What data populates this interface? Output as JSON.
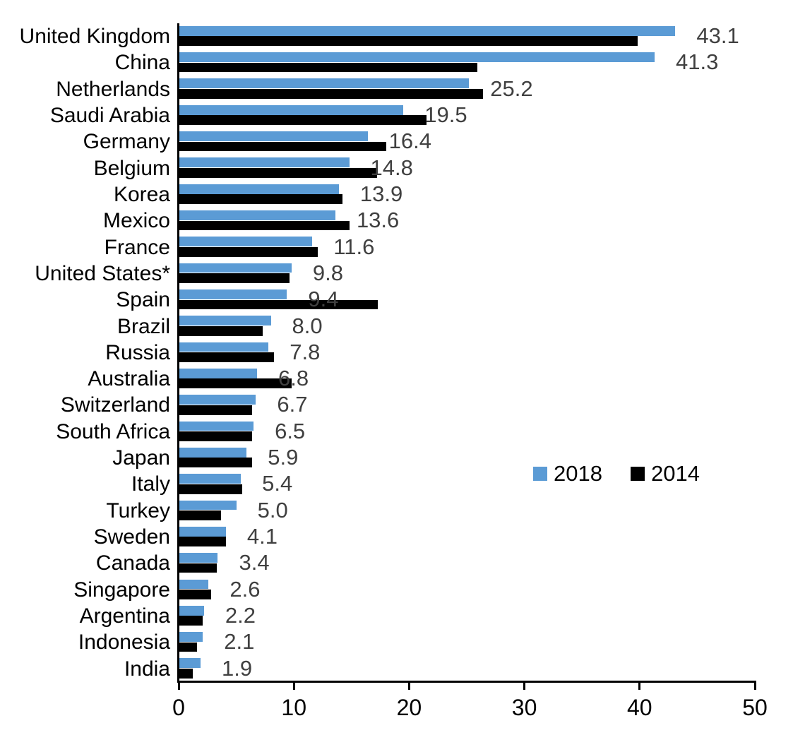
{
  "chart_data": {
    "type": "bar",
    "orientation": "horizontal",
    "title": "",
    "xlabel": "",
    "ylabel": "",
    "xlim": [
      0,
      50
    ],
    "x_ticks": [
      "0",
      "10",
      "20",
      "30",
      "40",
      "50"
    ],
    "grid": false,
    "legend_position": "middle-right",
    "value_label_color": "#404040",
    "categories": [
      "United Kingdom",
      "China",
      "Netherlands",
      "Saudi Arabia",
      "Germany",
      "Belgium",
      "Korea",
      "Mexico",
      "France",
      "United States*",
      "Spain",
      "Brazil",
      "Russia",
      "Australia",
      "Switzerland",
      "South Africa",
      "Japan",
      "Italy",
      "Turkey",
      "Sweden",
      "Canada",
      "Singapore",
      "Argentina",
      "Indonesia",
      "India"
    ],
    "series": [
      {
        "name": "2018",
        "color": "#5B9BD5",
        "values": [
          43.1,
          41.3,
          25.2,
          19.5,
          16.4,
          14.8,
          13.9,
          13.6,
          11.6,
          9.8,
          9.4,
          8.0,
          7.8,
          6.8,
          6.7,
          6.5,
          5.9,
          5.4,
          5.0,
          4.1,
          3.4,
          2.6,
          2.2,
          2.1,
          1.9
        ],
        "labels": [
          "43.1",
          "41.3",
          "25.2",
          "19.5",
          "16.4",
          "14.8",
          "13.9",
          "13.6",
          "11.6",
          "9.8",
          "9.4",
          "8.0",
          "7.8",
          "6.8",
          "6.7",
          "6.5",
          "5.9",
          "5.4",
          "5.0",
          "4.1",
          "3.4",
          "2.6",
          "2.2",
          "2.1",
          "1.9"
        ],
        "labels_shown": true
      },
      {
        "name": "2014",
        "color": "#000000",
        "values": [
          39.8,
          25.9,
          26.4,
          21.5,
          18.0,
          17.2,
          14.2,
          14.8,
          12.1,
          9.6,
          17.3,
          7.3,
          8.3,
          9.8,
          6.4,
          6.4,
          6.4,
          5.5,
          3.7,
          4.1,
          3.3,
          2.8,
          2.1,
          1.6,
          1.2
        ],
        "labels_shown": false
      }
    ]
  }
}
